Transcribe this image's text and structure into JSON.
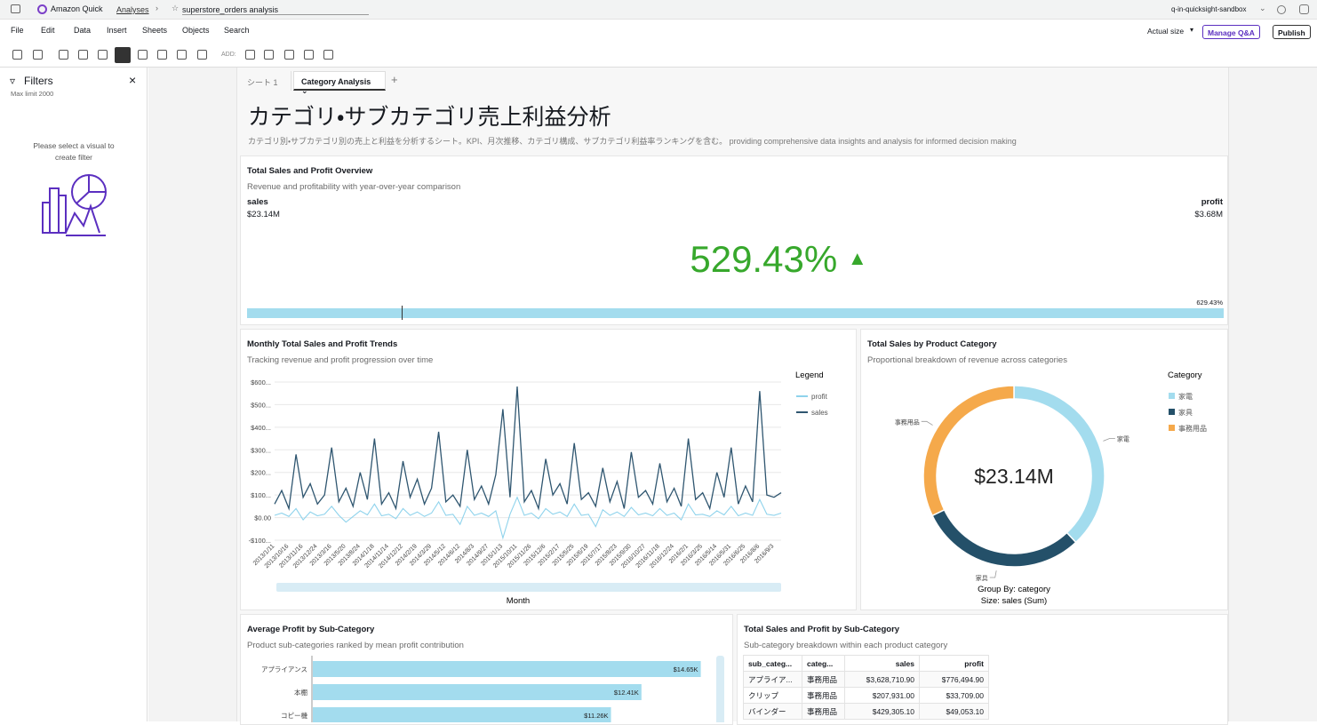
{
  "topbar": {
    "app": "Amazon Quick",
    "breadcrumb": "Analyses",
    "analysis": "superstore_orders analysis",
    "account": "q-in-quicksight-sandbox"
  },
  "menu": [
    "File",
    "Edit",
    "Data",
    "Insert",
    "Sheets",
    "Objects",
    "Search"
  ],
  "actions": {
    "zoom": "Actual size",
    "manage": "Manage Q&A",
    "publish": "Publish",
    "add": "ADD:"
  },
  "filters": {
    "title": "Filters",
    "limit": "Max limit 2000",
    "hint": "Please select a visual to create filter"
  },
  "tabs": [
    "シート 1",
    "Category Analysis"
  ],
  "sheet": {
    "title": "カテゴリ・サブカテゴリ売上利益分析",
    "description": "カテゴリ別・サブカテゴリ別の売上と利益を分析するシート。KPI、月次推移、カテゴリ構成、サブカテゴリ利益率ランキングを含む。 providing comprehensive data insights and analysis for informed decision making"
  },
  "kpi": {
    "title": "Total Sales and Profit Overview",
    "subtitle": "Revenue and profitability with year-over-year comparison",
    "left_label": "sales",
    "left_value": "$23.14M",
    "right_label": "profit",
    "right_value": "$3.68M",
    "main_value": "529.43%",
    "bar_label": "629.43%",
    "color": "#37a82c"
  },
  "line_chart": {
    "type": "line",
    "title": "Monthly Total Sales and Profit Trends",
    "subtitle": "Tracking revenue and profit progression over time",
    "x_label": "Month",
    "legend_title": "Legend",
    "ylim": [
      -100,
      600
    ],
    "yticks": [
      {
        "value": 600,
        "label": "$600..."
      },
      {
        "value": 500,
        "label": "$500..."
      },
      {
        "value": 400,
        "label": "$400..."
      },
      {
        "value": 300,
        "label": "$300..."
      },
      {
        "value": 200,
        "label": "$200..."
      },
      {
        "value": 100,
        "label": "$100..."
      },
      {
        "value": 0,
        "label": "$0.00"
      },
      {
        "value": -100,
        "label": "-$100..."
      }
    ],
    "grid": true,
    "categories": [
      "2013/1/11",
      null,
      "2013/10/16",
      null,
      "2013/11/16",
      null,
      "2013/12/24",
      null,
      "2013/3/16",
      null,
      "2013/5/20",
      null,
      "2013/8/24",
      null,
      "2014/1/18",
      null,
      "2014/11/14",
      null,
      "2014/12/12",
      null,
      "2014/2/19",
      null,
      "2014/3/29",
      null,
      "2014/5/12",
      null,
      "2014/6/12",
      null,
      "2014/8/3",
      null,
      "2014/9/27",
      null,
      "2015/1/13",
      null,
      "2015/10/11",
      null,
      "2015/11/26",
      null,
      "2015/12/6",
      null,
      "2015/2/17",
      null,
      "2015/5/25",
      null,
      "2015/6/19",
      null,
      "2015/7/17",
      null,
      "2015/8/23",
      null,
      "2015/9/30",
      null,
      "2016/10/27",
      null,
      "2016/11/18",
      null,
      "2016/12/24",
      null,
      "2016/2/1",
      null,
      "2016/3/25",
      null,
      "2016/5/14",
      null,
      "2016/5/31",
      null,
      "2016/6/25",
      null,
      "2016/8/6",
      null,
      "2016/9/3",
      null
    ],
    "series": [
      {
        "name": "profit",
        "color": "#8fd3ec",
        "values": [
          10,
          20,
          5,
          40,
          -10,
          25,
          8,
          15,
          50,
          10,
          -20,
          5,
          30,
          12,
          60,
          8,
          15,
          -5,
          40,
          10,
          25,
          5,
          20,
          70,
          10,
          15,
          -30,
          50,
          10,
          20,
          5,
          30,
          -90,
          15,
          90,
          10,
          20,
          -5,
          40,
          15,
          25,
          5,
          60,
          10,
          15,
          -40,
          35,
          10,
          25,
          5,
          45,
          12,
          20,
          8,
          40,
          10,
          20,
          -10,
          60,
          12,
          15,
          5,
          30,
          12,
          50,
          8,
          20,
          10,
          80,
          15,
          10,
          20
        ]
      },
      {
        "name": "sales",
        "color": "#2f5670",
        "values": [
          60,
          120,
          40,
          280,
          90,
          150,
          60,
          100,
          310,
          70,
          130,
          50,
          200,
          80,
          350,
          60,
          110,
          40,
          250,
          90,
          170,
          60,
          130,
          380,
          70,
          100,
          50,
          300,
          80,
          140,
          60,
          190,
          480,
          90,
          580,
          70,
          120,
          40,
          260,
          100,
          150,
          60,
          330,
          80,
          110,
          50,
          220,
          70,
          160,
          40,
          290,
          90,
          120,
          60,
          240,
          70,
          130,
          50,
          350,
          80,
          110,
          40,
          200,
          90,
          310,
          60,
          140,
          70,
          560,
          100,
          90,
          110
        ]
      }
    ]
  },
  "donut_chart": {
    "type": "pie",
    "title": "Total Sales by Product Category",
    "subtitle": "Proportional breakdown of revenue across categories",
    "legend_title": "Category",
    "center_label": "$23.14M",
    "footer": [
      "Group By: category",
      "Size: sales (Sum)"
    ],
    "categories": [
      "家電",
      "家具",
      "事務用品"
    ],
    "values": [
      8.8,
      6.9,
      7.44
    ],
    "colors": [
      "#a3dcee",
      "#245069",
      "#f5a94b"
    ]
  },
  "bar_chart": {
    "type": "bar",
    "title": "Average Profit by Sub-Category",
    "subtitle": "Product sub-categories ranked by mean profit contribution",
    "categories": [
      "アプライアンス",
      "本棚",
      "コピー機"
    ],
    "values": [
      14650,
      12410,
      11260
    ],
    "value_labels": [
      "$14.65K",
      "$12.41K",
      "$11.26K"
    ],
    "xlim": [
      0,
      15000
    ],
    "color": "#a3dcee"
  },
  "table": {
    "title": "Total Sales and Profit by Sub-Category",
    "subtitle": "Sub-category breakdown within each product category",
    "columns": [
      "sub_categ...",
      "categ...",
      "sales",
      "profit"
    ],
    "rows": [
      [
        "アプライア...",
        "事務用品",
        "$3,628,710.90",
        "$776,494.90"
      ],
      [
        "クリップ",
        "事務用品",
        "$207,931.00",
        "$33,709.00"
      ],
      [
        "バインダー",
        "事務用品",
        "$429,305.10",
        "$49,053.10"
      ]
    ]
  }
}
